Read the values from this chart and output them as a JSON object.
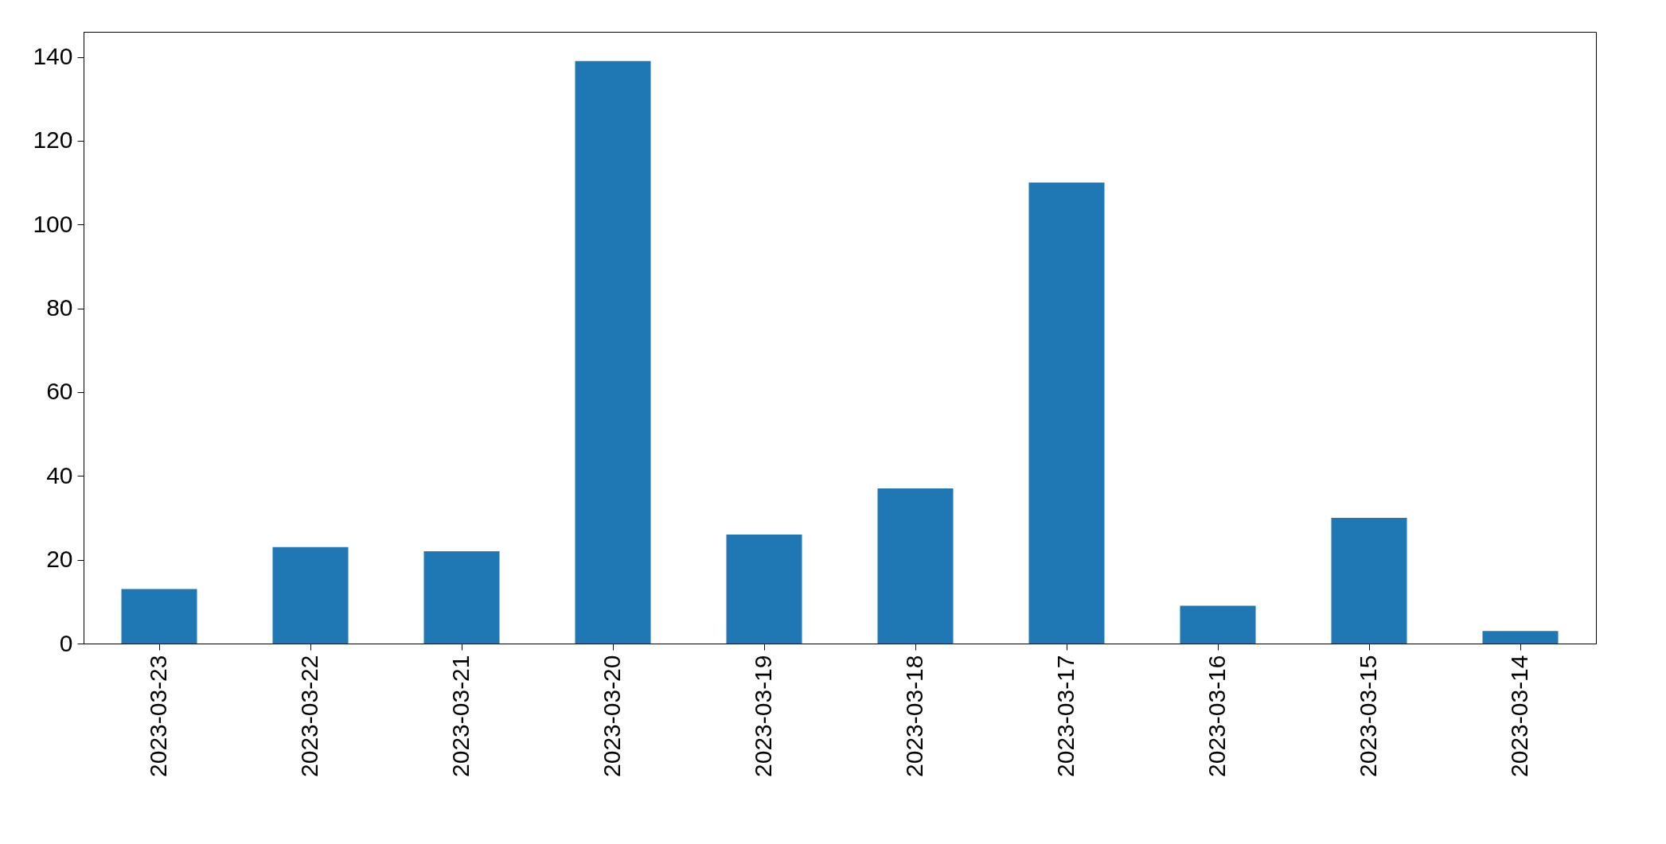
{
  "chart_data": {
    "type": "bar",
    "categories": [
      "2023-03-23",
      "2023-03-22",
      "2023-03-21",
      "2023-03-20",
      "2023-03-19",
      "2023-03-18",
      "2023-03-17",
      "2023-03-16",
      "2023-03-15",
      "2023-03-14"
    ],
    "values": [
      13,
      23,
      22,
      139,
      26,
      37,
      110,
      9,
      30,
      3
    ],
    "color": "#1f77b4",
    "ylim": [
      0,
      146
    ],
    "yticks": [
      0,
      20,
      40,
      60,
      80,
      100,
      120,
      140
    ],
    "grid": false,
    "legend": false
  }
}
